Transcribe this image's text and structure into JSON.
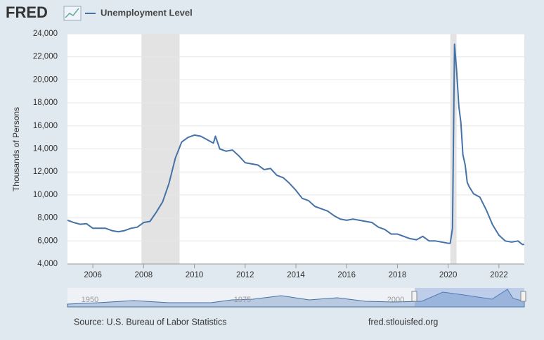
{
  "logo": "FRED",
  "chart_data": {
    "type": "line",
    "title": "Unemployment Level",
    "y_label": "Thousands of Persons",
    "source": "Source: U.S. Bureau of Labor Statistics",
    "site": "fred.stlouisfed.org",
    "navigator_labels": [
      "1950",
      "1975",
      "2000"
    ],
    "xlim": [
      2005,
      2023
    ],
    "xticks": [
      2006,
      2008,
      2010,
      2012,
      2014,
      2016,
      2018,
      2020,
      2022
    ],
    "ylim": [
      4000,
      24000
    ],
    "yticks": [
      {
        "value": 4000,
        "label": "4,000"
      },
      {
        "value": 6000,
        "label": "6,000"
      },
      {
        "value": 8000,
        "label": "8,000"
      },
      {
        "value": 10000,
        "label": "10,000"
      },
      {
        "value": 12000,
        "label": "12,000"
      },
      {
        "value": 14000,
        "label": "14,000"
      },
      {
        "value": 16000,
        "label": "16,000"
      },
      {
        "value": 18000,
        "label": "18,000"
      },
      {
        "value": 20000,
        "label": "20,000"
      },
      {
        "value": 22000,
        "label": "22,000"
      },
      {
        "value": 24000,
        "label": "24,000"
      }
    ],
    "grid": true,
    "recessions": [
      [
        2007.917,
        2009.417
      ],
      [
        2020.083,
        2020.333
      ]
    ],
    "x": [
      2005.0,
      2005.25,
      2005.5,
      2005.75,
      2006.0,
      2006.25,
      2006.5,
      2006.75,
      2007.0,
      2007.25,
      2007.5,
      2007.75,
      2008.0,
      2008.25,
      2008.5,
      2008.75,
      2009.0,
      2009.25,
      2009.5,
      2009.75,
      2010.0,
      2010.25,
      2010.5,
      2010.75,
      2010.83,
      2011.0,
      2011.25,
      2011.5,
      2011.75,
      2012.0,
      2012.25,
      2012.5,
      2012.75,
      2013.0,
      2013.25,
      2013.5,
      2013.75,
      2014.0,
      2014.25,
      2014.5,
      2014.75,
      2015.0,
      2015.25,
      2015.5,
      2015.75,
      2016.0,
      2016.25,
      2016.5,
      2016.75,
      2017.0,
      2017.25,
      2017.5,
      2017.75,
      2018.0,
      2018.25,
      2018.5,
      2018.75,
      2019.0,
      2019.25,
      2019.5,
      2019.75,
      2020.0,
      2020.08,
      2020.17,
      2020.25,
      2020.33,
      2020.42,
      2020.5,
      2020.58,
      2020.67,
      2020.75,
      2020.83,
      2021.0,
      2021.25,
      2021.5,
      2021.75,
      2022.0,
      2022.25,
      2022.5,
      2022.75,
      2022.92,
      2023.0
    ],
    "series": [
      {
        "name": "Unemployment Level",
        "color": "#4572a7",
        "values": [
          7800,
          7600,
          7450,
          7500,
          7100,
          7100,
          7100,
          6900,
          6800,
          6900,
          7100,
          7200,
          7600,
          7700,
          8500,
          9400,
          11000,
          13200,
          14600,
          15000,
          15200,
          15100,
          14800,
          14500,
          15100,
          14000,
          13800,
          13900,
          13400,
          12800,
          12700,
          12600,
          12200,
          12300,
          11700,
          11500,
          11000,
          10400,
          9700,
          9500,
          9000,
          8800,
          8600,
          8200,
          7900,
          7800,
          7900,
          7800,
          7700,
          7600,
          7200,
          7000,
          6600,
          6600,
          6400,
          6200,
          6100,
          6400,
          6000,
          6000,
          5900,
          5800,
          5800,
          7100,
          23100,
          20900,
          17700,
          16300,
          13500,
          12600,
          11100,
          10700,
          10100,
          9800,
          8700,
          7400,
          6500,
          6000,
          5900,
          6000,
          5700,
          5700
        ]
      }
    ]
  }
}
